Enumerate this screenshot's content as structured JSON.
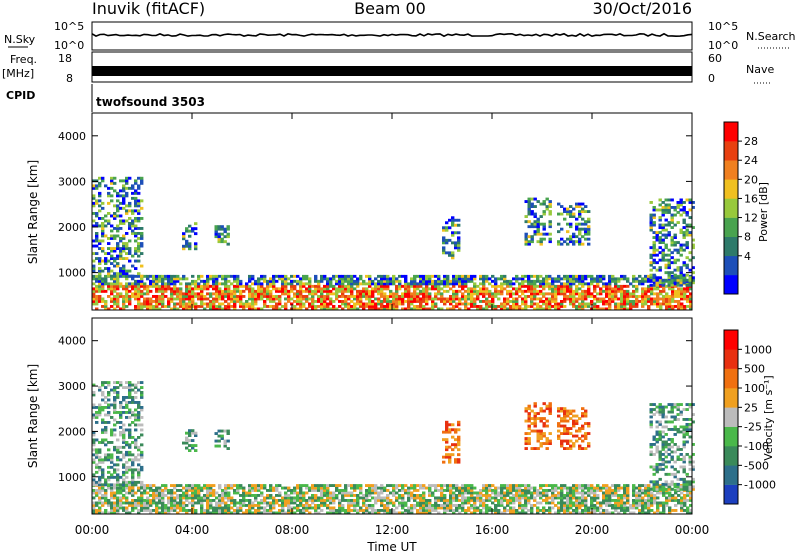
{
  "header": {
    "station": "Inuvik (fitACF)",
    "beam": "Beam 00",
    "date": "30/Oct/2016"
  },
  "noise_panel": {
    "left_label": "N.Sky",
    "left_ticks": [
      "10^5",
      "10^0"
    ],
    "right_ticks": [
      "10^5",
      "10^0"
    ],
    "right_label": "N.Search"
  },
  "freq_panel": {
    "left_label_line1": "Freq.",
    "left_label_line2": "[MHz]",
    "left_ticks": [
      "18",
      "8"
    ],
    "right_ticks": [
      "60",
      "0"
    ],
    "right_label": "Nave"
  },
  "cpid_panel": {
    "label": "CPID",
    "program": "twofsound 3503"
  },
  "chart_data": [
    {
      "type": "heatmap",
      "parameter": "Power",
      "ylabel": "Slant Range [km]",
      "ylim": [
        180,
        4500
      ],
      "yticks": [
        "1000",
        "2000",
        "3000",
        "4000"
      ],
      "xlim": [
        "00:00",
        "24:00"
      ],
      "colorbar": {
        "label": "Power [dB]",
        "ticks": [
          "28",
          "24",
          "20",
          "16",
          "12",
          "8",
          "4"
        ],
        "colors": [
          "#0000ff",
          "#1d4fb8",
          "#2e7a6a",
          "#49a34f",
          "#98c93c",
          "#f0c020",
          "#f08020",
          "#e84010",
          "#ff0000"
        ]
      },
      "echo_regions": [
        {
          "t_start": 0.0,
          "t_end": 24.0,
          "r_min": 180,
          "r_max": 900,
          "note": "continuous near-range scatter, strongest 00:00-02:00 and 08:00-17:00"
        },
        {
          "t_start": 0.0,
          "t_end": 2.0,
          "r_min": 900,
          "r_max": 3100
        },
        {
          "t_start": 3.6,
          "t_end": 4.2,
          "r_min": 1500,
          "r_max": 2100
        },
        {
          "t_start": 4.9,
          "t_end": 5.5,
          "r_min": 1600,
          "r_max": 2000
        },
        {
          "t_start": 14.0,
          "t_end": 14.7,
          "r_min": 1300,
          "r_max": 2200
        },
        {
          "t_start": 17.3,
          "t_end": 18.3,
          "r_min": 1600,
          "r_max": 2600
        },
        {
          "t_start": 18.6,
          "t_end": 19.9,
          "r_min": 1600,
          "r_max": 2500
        },
        {
          "t_start": 22.3,
          "t_end": 24.0,
          "r_min": 700,
          "r_max": 2600
        }
      ]
    },
    {
      "type": "heatmap",
      "parameter": "Velocity",
      "ylabel": "Slant Range [km]",
      "ylim": [
        180,
        4500
      ],
      "yticks": [
        "1000",
        "2000",
        "3000",
        "4000"
      ],
      "xlabel": "Time UT",
      "xticks": [
        "00:00",
        "04:00",
        "08:00",
        "12:00",
        "16:00",
        "20:00",
        "00:00"
      ],
      "colorbar": {
        "label": "Velocity [m s⁻¹]",
        "ticks": [
          "1000",
          "500",
          "100",
          "25",
          "-25",
          "-100",
          "-500",
          "-1000"
        ],
        "colors": [
          "#1c3fbf",
          "#2d6f8a",
          "#3a8a5a",
          "#4ab84a",
          "#bcbcbc",
          "#f0a020",
          "#f07010",
          "#e83010",
          "#ff0000"
        ]
      },
      "echo_regions": [
        {
          "t_start": 0.0,
          "t_end": 24.0,
          "r_min": 180,
          "r_max": 800,
          "note": "near-range echoes, green/grey low velocity"
        },
        {
          "t_start": 0.0,
          "t_end": 2.0,
          "r_min": 800,
          "r_max": 3100
        },
        {
          "t_start": 3.6,
          "t_end": 4.2,
          "r_min": 1500,
          "r_max": 2100
        },
        {
          "t_start": 4.9,
          "t_end": 5.5,
          "r_min": 1600,
          "r_max": 2000
        },
        {
          "t_start": 14.0,
          "t_end": 14.7,
          "r_min": 1300,
          "r_max": 2200
        },
        {
          "t_start": 17.3,
          "t_end": 18.3,
          "r_min": 1600,
          "r_max": 2600
        },
        {
          "t_start": 18.6,
          "t_end": 19.9,
          "r_min": 1600,
          "r_max": 2500
        },
        {
          "t_start": 22.3,
          "t_end": 24.0,
          "r_min": 700,
          "r_max": 2600
        }
      ]
    }
  ]
}
